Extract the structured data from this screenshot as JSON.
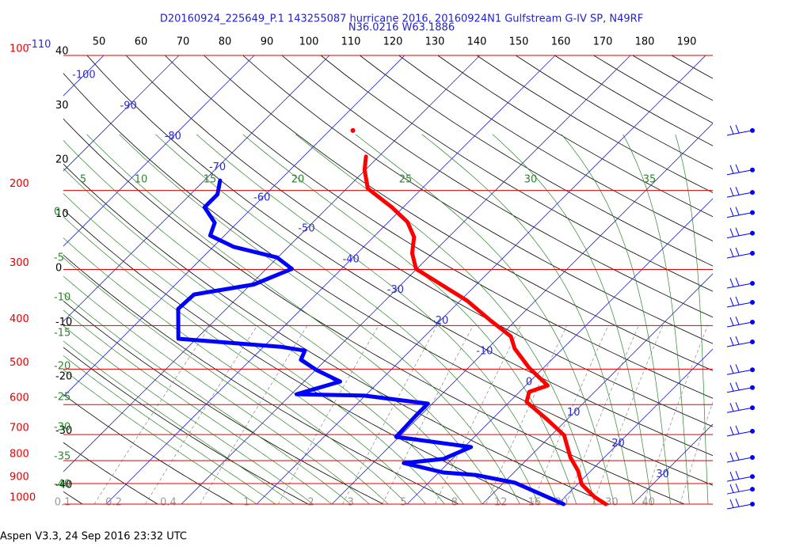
{
  "header": {
    "title": "D20160924_225649_P.1 143255087 hurricane 2016, 20160924N1 Gulfstream G-IV SP, N49RF",
    "subtitle": "N36.0216 W63.1886"
  },
  "footer": "Aspen V3.3, 24 Sep 2016  23:32 UTC",
  "chart_data": {
    "type": "skew-t",
    "pressure_levels": [
      100,
      200,
      300,
      400,
      500,
      600,
      700,
      800,
      900,
      1000
    ],
    "pressure_color": "#e00000",
    "top_scale": [
      50,
      60,
      70,
      80,
      90,
      100,
      110,
      120,
      130,
      140,
      150,
      160,
      170,
      180,
      190
    ],
    "left_scale": [
      40,
      30,
      20,
      10,
      0,
      -10,
      -20,
      -30,
      -40
    ],
    "isotherm_labels": [
      -110,
      -100,
      -90,
      -80,
      -70,
      -60,
      -50,
      -40,
      -30,
      -20,
      -10,
      0,
      10,
      20,
      30
    ],
    "isotherm_color": "#2b2bd0",
    "theta_labels": [
      5,
      10,
      15,
      20,
      25,
      30,
      35
    ],
    "theta_e_labels": [
      0,
      -5,
      -10,
      -15,
      -20,
      -25,
      -30,
      -35,
      -40
    ],
    "adiabat_color": "#2a862a",
    "mixing_ratio_labels": [
      0.1,
      0.2,
      0.4,
      1,
      2,
      3,
      5,
      8,
      12,
      16,
      20,
      30,
      40
    ],
    "temperature": {
      "color": "#ff0000",
      "pressure": [
        1000,
        963,
        904,
        843,
        787,
        702,
        647,
        592,
        562,
        544,
        497,
        450,
        423,
        390,
        352,
        322,
        299,
        276,
        254,
        235,
        218,
        198,
        180,
        168
      ],
      "values": [
        26.4,
        23.9,
        20.6,
        18.3,
        15.5,
        11.7,
        7.3,
        2.3,
        1.3,
        2.9,
        -1.9,
        -6.4,
        -8.5,
        -13.3,
        -19.1,
        -25.1,
        -30.1,
        -32.7,
        -34.6,
        -37.5,
        -41.5,
        -47.2,
        -50.1,
        -51.7
      ]
    },
    "temperature_outlier": {
      "pressure": 147,
      "value": -56.9
    },
    "dewpoint": {
      "color": "#0000ff",
      "pressure": [
        1000,
        963,
        896,
        861,
        850,
        810,
        793,
        746,
        708,
        634,
        597,
        573,
        569,
        533,
        503,
        477,
        455,
        446,
        428,
        367,
        341,
        324,
        299,
        282,
        267,
        252,
        236,
        218,
        204,
        190
      ],
      "values": [
        20.8,
        17.6,
        11.5,
        5.2,
        0.6,
        -5.9,
        -1.2,
        0.9,
        -10.4,
        -10.6,
        -10.6,
        -20.1,
        -29.3,
        -25.2,
        -29.8,
        -33.3,
        -34,
        -37.7,
        -52.4,
        -56.4,
        -56.2,
        -49.6,
        -46.6,
        -50.1,
        -57.3,
        -61.9,
        -63,
        -66.4,
        -66.4,
        -67.9
      ]
    },
    "wind_levels": [
      147,
      180,
      202,
      224,
      249,
      276,
      322,
      355,
      393,
      435,
      502,
      550,
      610,
      688,
      787,
      868,
      926,
      1000
    ]
  }
}
